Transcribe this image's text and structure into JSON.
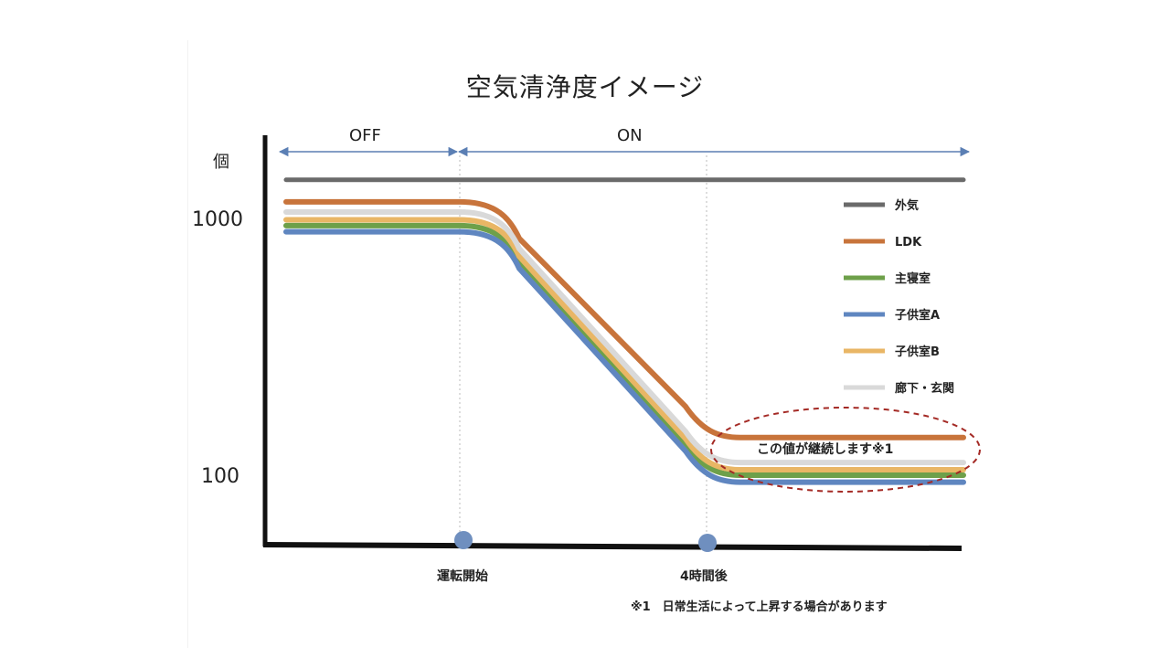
{
  "chart_data": {
    "type": "line",
    "title": "空気清浄度イメージ",
    "ylabel": "個",
    "y_scale": "log",
    "ylim": [
      40,
      1500
    ],
    "y_ticks": [
      "1000",
      "100"
    ],
    "phases": [
      {
        "label": "OFF"
      },
      {
        "label": "ON"
      }
    ],
    "events": [
      {
        "label": "運転開始"
      },
      {
        "label": "4時間後"
      }
    ],
    "annotation": "この値が継続します※1",
    "footnote": "※1　日常生活によって上昇する場合があります",
    "series": [
      {
        "name": "外気",
        "color": "#6a6a6a",
        "off_level": 1400,
        "after_level": 1400
      },
      {
        "name": "LDK",
        "color": "#c8743b",
        "off_level": 1150,
        "after_level": 140
      },
      {
        "name": "主寝室",
        "color": "#6ea04a",
        "off_level": 930,
        "after_level": 100
      },
      {
        "name": "子供室A",
        "color": "#5f86c0",
        "off_level": 880,
        "after_level": 94
      },
      {
        "name": "子供室B",
        "color": "#e9b665",
        "off_level": 980,
        "after_level": 105
      },
      {
        "name": "廊下・玄関",
        "color": "#d9d9d9",
        "off_level": 1050,
        "after_level": 112
      }
    ]
  }
}
